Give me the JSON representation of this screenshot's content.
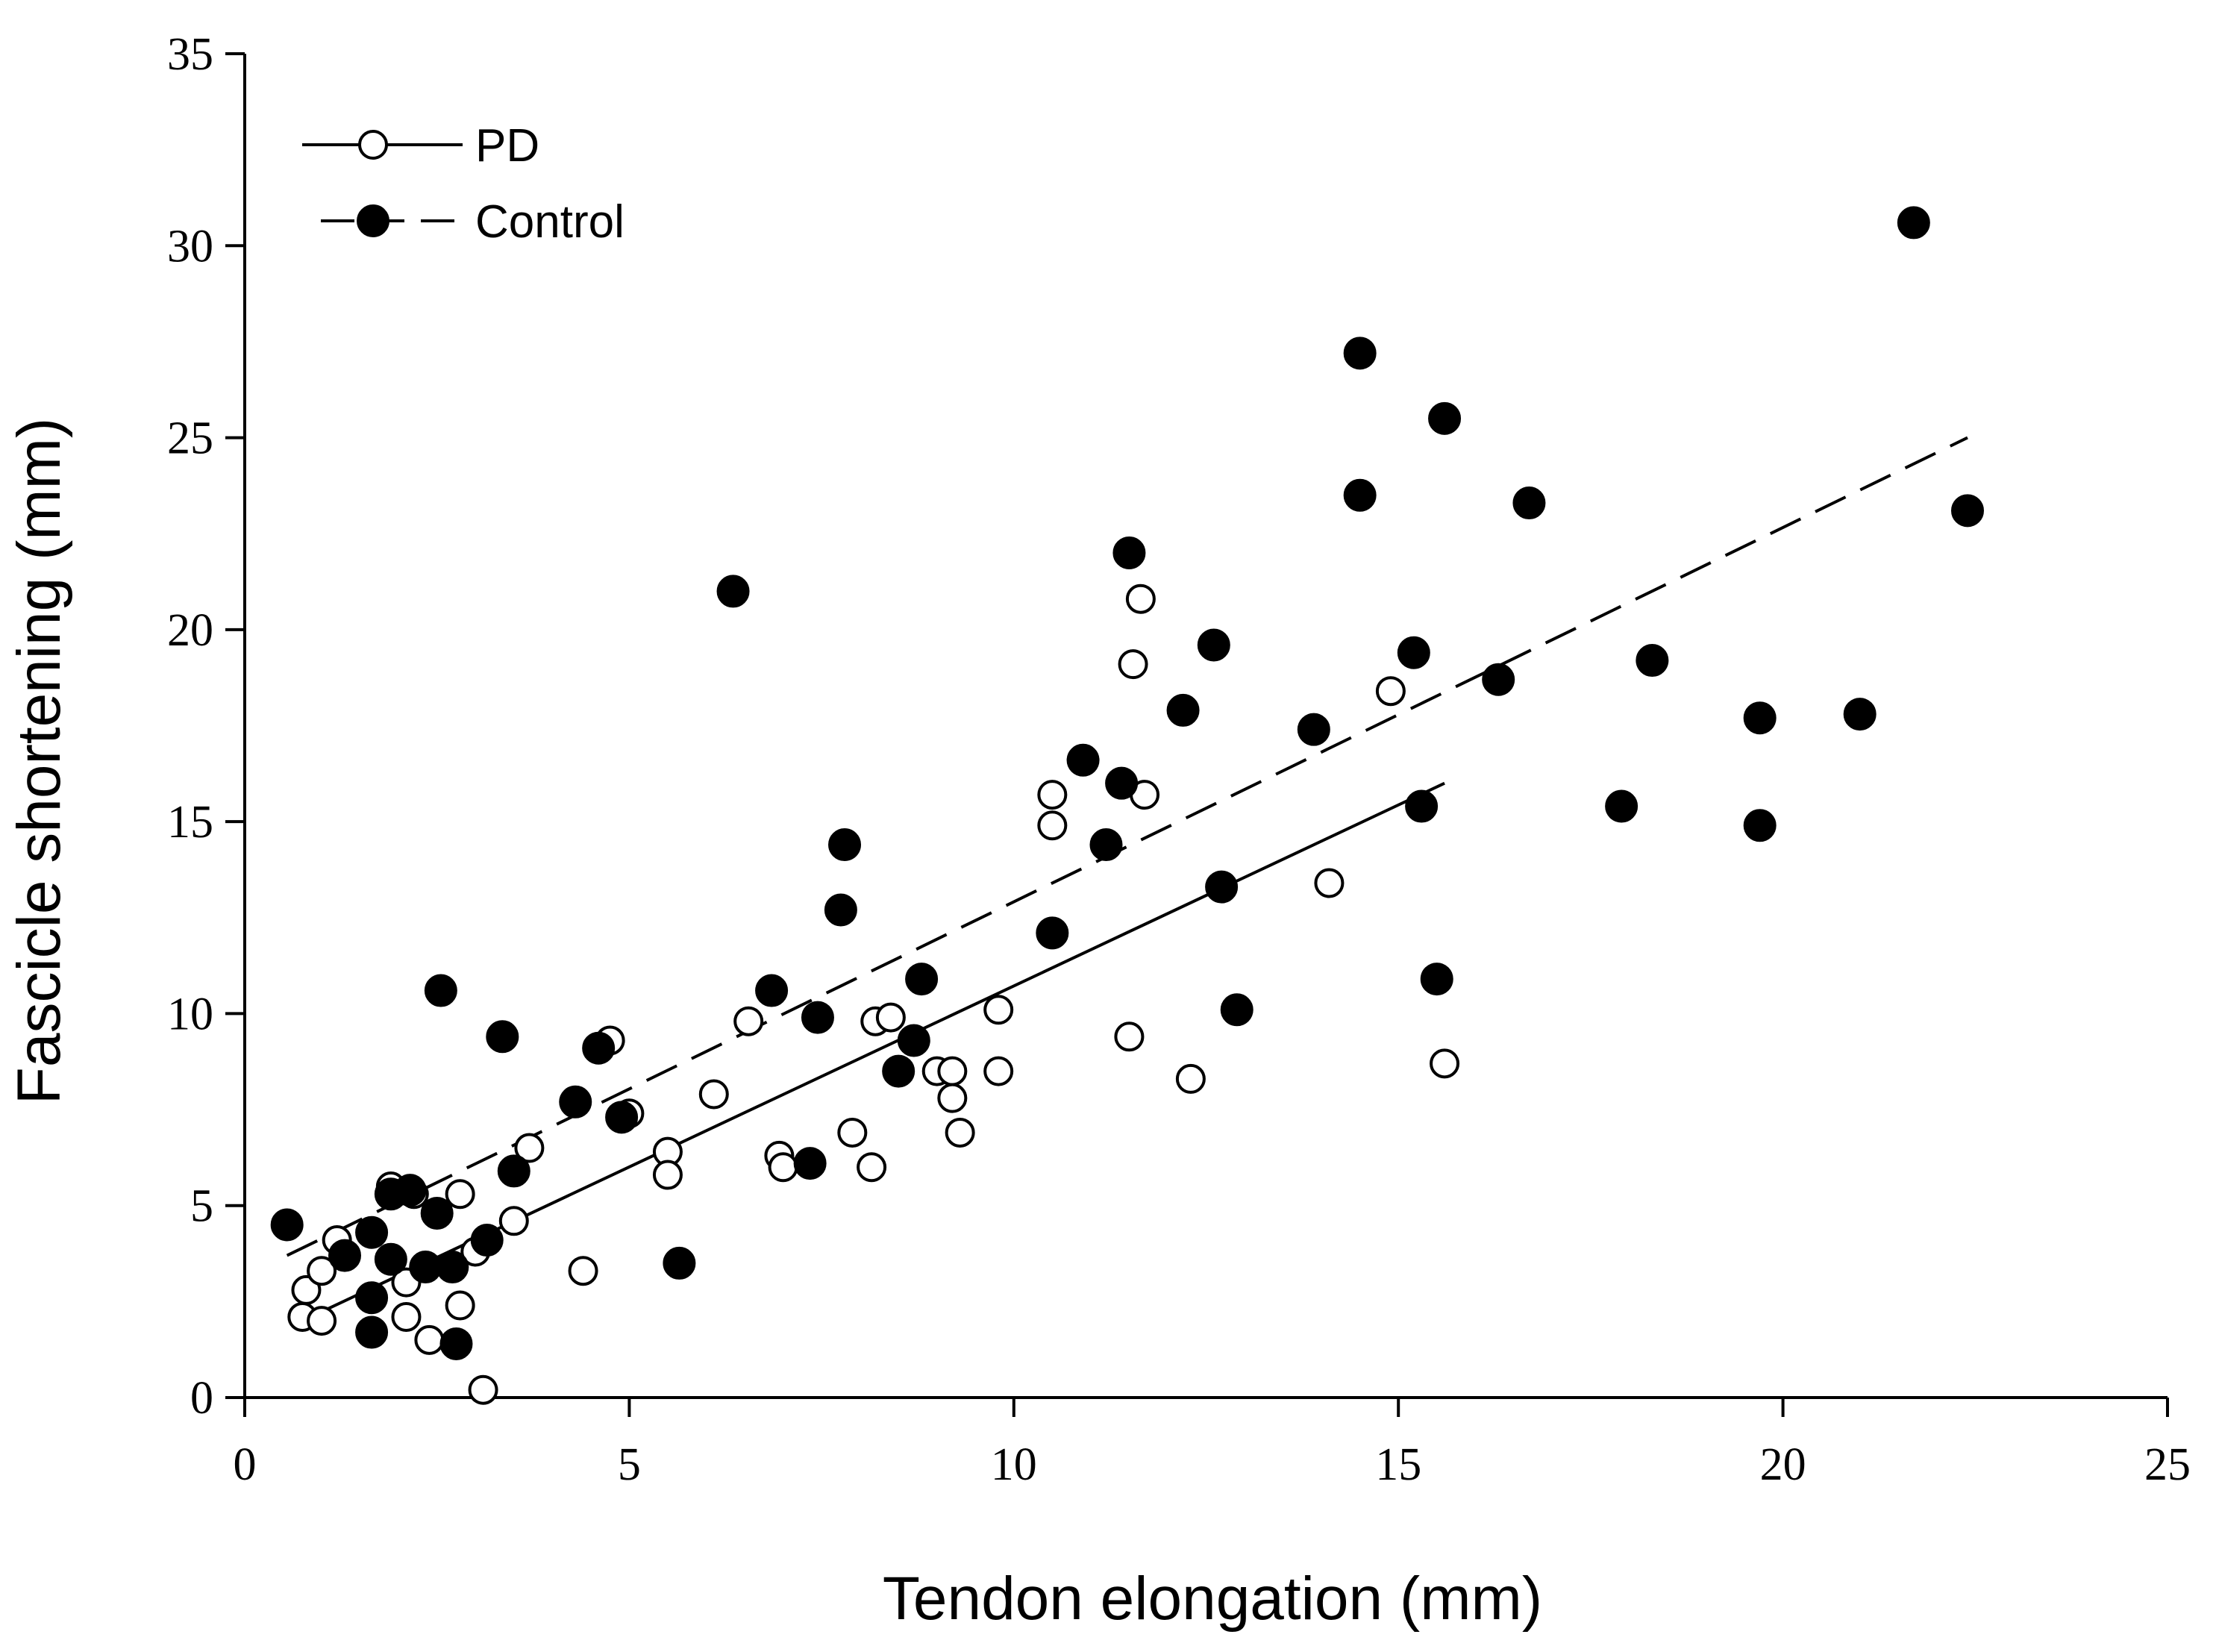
{
  "chart_data": {
    "type": "scatter",
    "title": "",
    "xlabel": "Tendon elongation (mm)",
    "ylabel": "Fascicle shortening (mm)",
    "xlim": [
      0,
      25
    ],
    "ylim": [
      0,
      35
    ],
    "xticks": [
      "0",
      "5",
      "10",
      "15",
      "20",
      "25"
    ],
    "yticks": [
      "0",
      "5",
      "10",
      "15",
      "20",
      "25",
      "30",
      "35"
    ],
    "legend_position": "top-left",
    "series": [
      {
        "name": "PD",
        "marker": "open-circle",
        "line_style": "solid",
        "color": "#000000",
        "fit_line": [
          [
            0.75,
            2.0
          ],
          [
            15.6,
            16.0
          ]
        ],
        "points": [
          [
            0.75,
            2.1
          ],
          [
            0.8,
            2.8
          ],
          [
            1.0,
            2.0
          ],
          [
            1.0,
            3.3
          ],
          [
            1.2,
            4.1
          ],
          [
            1.9,
            5.5
          ],
          [
            2.1,
            2.1
          ],
          [
            2.1,
            3.0
          ],
          [
            2.2,
            5.3
          ],
          [
            2.4,
            1.5
          ],
          [
            2.8,
            2.4
          ],
          [
            2.8,
            5.3
          ],
          [
            3.0,
            3.8
          ],
          [
            3.1,
            0.2
          ],
          [
            3.5,
            4.6
          ],
          [
            3.7,
            6.5
          ],
          [
            4.4,
            3.3
          ],
          [
            4.75,
            9.3
          ],
          [
            5.0,
            7.4
          ],
          [
            5.5,
            6.4
          ],
          [
            5.5,
            5.8
          ],
          [
            6.1,
            7.9
          ],
          [
            6.55,
            9.8
          ],
          [
            6.95,
            6.3
          ],
          [
            7.0,
            6.0
          ],
          [
            7.9,
            6.9
          ],
          [
            8.15,
            6.0
          ],
          [
            8.2,
            9.8
          ],
          [
            8.4,
            9.9
          ],
          [
            9.0,
            8.5
          ],
          [
            9.2,
            8.5
          ],
          [
            9.2,
            7.8
          ],
          [
            9.3,
            6.9
          ],
          [
            9.8,
            10.1
          ],
          [
            9.8,
            8.5
          ],
          [
            10.5,
            15.7
          ],
          [
            10.5,
            14.9
          ],
          [
            11.5,
            9.4
          ],
          [
            11.55,
            19.1
          ],
          [
            11.65,
            20.8
          ],
          [
            11.7,
            15.7
          ],
          [
            12.3,
            8.3
          ],
          [
            14.1,
            13.4
          ],
          [
            14.9,
            18.4
          ],
          [
            15.6,
            8.7
          ]
        ]
      },
      {
        "name": "Control",
        "marker": "filled-circle",
        "line_style": "dashed",
        "color": "#000000",
        "fit_line": [
          [
            0.55,
            3.7
          ],
          [
            22.4,
            25.0
          ]
        ],
        "points": [
          [
            0.55,
            4.5
          ],
          [
            1.3,
            3.7
          ],
          [
            1.65,
            4.3
          ],
          [
            1.65,
            2.6
          ],
          [
            1.65,
            1.7
          ],
          [
            1.9,
            5.3
          ],
          [
            1.9,
            3.6
          ],
          [
            2.15,
            5.4
          ],
          [
            2.35,
            3.4
          ],
          [
            2.5,
            4.8
          ],
          [
            2.55,
            10.6
          ],
          [
            2.7,
            3.4
          ],
          [
            2.75,
            1.4
          ],
          [
            3.15,
            4.1
          ],
          [
            3.35,
            9.4
          ],
          [
            3.5,
            5.9
          ],
          [
            4.3,
            7.7
          ],
          [
            4.6,
            9.1
          ],
          [
            4.9,
            7.3
          ],
          [
            5.65,
            3.5
          ],
          [
            6.35,
            21.0
          ],
          [
            6.85,
            10.6
          ],
          [
            7.35,
            6.1
          ],
          [
            7.45,
            9.9
          ],
          [
            7.75,
            12.7
          ],
          [
            7.8,
            14.4
          ],
          [
            8.5,
            8.5
          ],
          [
            8.7,
            9.3
          ],
          [
            8.8,
            10.9
          ],
          [
            10.5,
            12.1
          ],
          [
            10.9,
            16.6
          ],
          [
            11.2,
            14.4
          ],
          [
            11.4,
            16.0
          ],
          [
            11.5,
            22.0
          ],
          [
            12.2,
            17.9
          ],
          [
            12.6,
            19.6
          ],
          [
            12.7,
            13.3
          ],
          [
            12.9,
            10.1
          ],
          [
            13.9,
            17.4
          ],
          [
            14.5,
            27.2
          ],
          [
            14.5,
            23.5
          ],
          [
            15.2,
            19.4
          ],
          [
            15.3,
            15.4
          ],
          [
            15.5,
            10.9
          ],
          [
            15.6,
            25.5
          ],
          [
            16.3,
            18.7
          ],
          [
            16.7,
            23.3
          ],
          [
            17.9,
            15.4
          ],
          [
            18.3,
            19.2
          ],
          [
            19.7,
            17.7
          ],
          [
            19.7,
            14.9
          ],
          [
            21.0,
            17.8
          ],
          [
            21.7,
            30.6
          ],
          [
            22.4,
            23.1
          ]
        ]
      }
    ]
  }
}
